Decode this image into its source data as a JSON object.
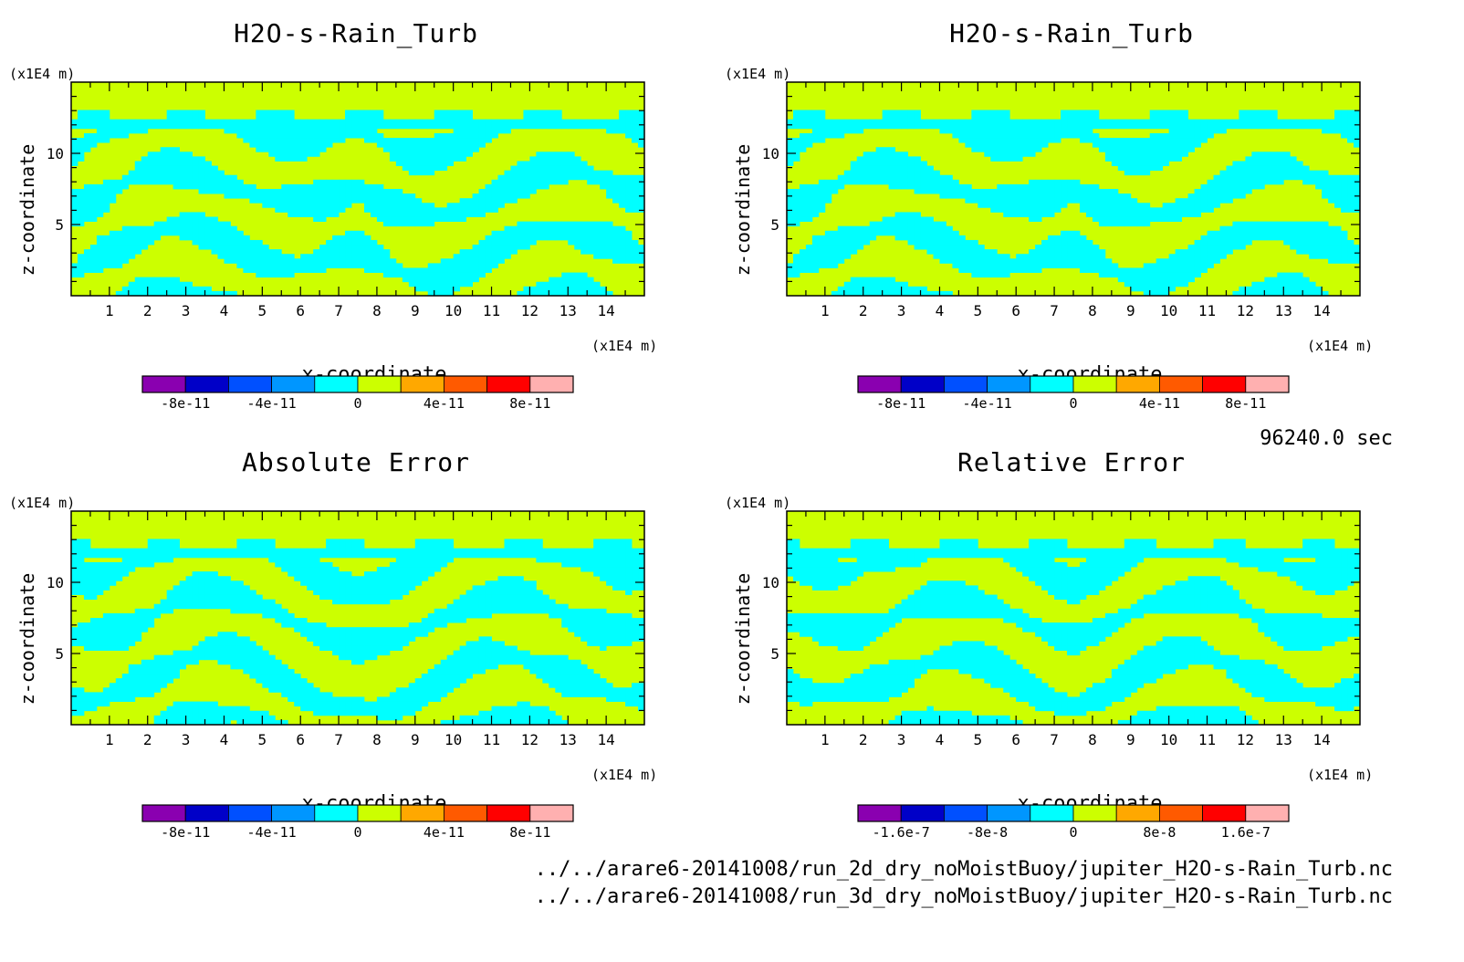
{
  "time_label": "96240.0 sec",
  "files": [
    "../../arare6-20141008/run_2d_dry_noMoistBuoy/jupiter_H2O-s-Rain_Turb.nc",
    "../../arare6-20141008/run_3d_dry_noMoistBuoy/jupiter_H2O-s-Rain_Turb.nc"
  ],
  "colors": {
    "field_low": "#00ffff",
    "field_high": "#ccff00",
    "colorbar": [
      "#8a00b0",
      "#0000c8",
      "#0050ff",
      "#0096ff",
      "#00ffff",
      "#ccff00",
      "#ffa800",
      "#ff5a00",
      "#ff0000",
      "#ffb0b0"
    ]
  },
  "chart_data": [
    {
      "type": "heatmap",
      "title": "H2O-s-Rain_Turb",
      "xlabel": "x-coordinate",
      "ylabel": "z-coordinate",
      "xunits": "(x1E4 m)",
      "yunits": "(x1E4 m)",
      "xlim": [
        0,
        15
      ],
      "ylim": [
        0,
        15
      ],
      "xticks": [
        "1",
        "2",
        "3",
        "4",
        "5",
        "6",
        "7",
        "8",
        "9",
        "10",
        "11",
        "12",
        "13",
        "14"
      ],
      "yticks": [
        "5",
        "10"
      ],
      "colorbar_labels": [
        "-8e-11",
        "-4e-11",
        "0",
        "4e-11",
        "8e-11"
      ],
      "levels": [
        -1e-10,
        -8e-11,
        -6e-11,
        -4e-11,
        -2e-11,
        0,
        2e-11,
        4e-11,
        6e-11,
        8e-11,
        1e-10
      ]
    },
    {
      "type": "heatmap",
      "title": "H2O-s-Rain_Turb",
      "xlabel": "x-coordinate",
      "ylabel": "z-coordinate",
      "xunits": "(x1E4 m)",
      "yunits": "(x1E4 m)",
      "xlim": [
        0,
        15
      ],
      "ylim": [
        0,
        15
      ],
      "xticks": [
        "1",
        "2",
        "3",
        "4",
        "5",
        "6",
        "7",
        "8",
        "9",
        "10",
        "11",
        "12",
        "13",
        "14"
      ],
      "yticks": [
        "5",
        "10"
      ],
      "colorbar_labels": [
        "-8e-11",
        "-4e-11",
        "0",
        "4e-11",
        "8e-11"
      ],
      "levels": [
        -1e-10,
        -8e-11,
        -6e-11,
        -4e-11,
        -2e-11,
        0,
        2e-11,
        4e-11,
        6e-11,
        8e-11,
        1e-10
      ]
    },
    {
      "type": "heatmap",
      "title": "Absolute Error",
      "xlabel": "x-coordinate",
      "ylabel": "z-coordinate",
      "xunits": "(x1E4 m)",
      "yunits": "(x1E4 m)",
      "xlim": [
        0,
        15
      ],
      "ylim": [
        0,
        15
      ],
      "xticks": [
        "1",
        "2",
        "3",
        "4",
        "5",
        "6",
        "7",
        "8",
        "9",
        "10",
        "11",
        "12",
        "13",
        "14"
      ],
      "yticks": [
        "5",
        "10"
      ],
      "colorbar_labels": [
        "-8e-11",
        "-4e-11",
        "0",
        "4e-11",
        "8e-11"
      ],
      "levels": [
        -1e-10,
        -8e-11,
        -6e-11,
        -4e-11,
        -2e-11,
        0,
        2e-11,
        4e-11,
        6e-11,
        8e-11,
        1e-10
      ]
    },
    {
      "type": "heatmap",
      "title": "Relative Error",
      "xlabel": "x-coordinate",
      "ylabel": "z-coordinate",
      "xunits": "(x1E4 m)",
      "yunits": "(x1E4 m)",
      "xlim": [
        0,
        15
      ],
      "ylim": [
        0,
        15
      ],
      "xticks": [
        "1",
        "2",
        "3",
        "4",
        "5",
        "6",
        "7",
        "8",
        "9",
        "10",
        "11",
        "12",
        "13",
        "14"
      ],
      "yticks": [
        "5",
        "10"
      ],
      "colorbar_labels": [
        "-1.6e-7",
        "-8e-8",
        "0",
        "8e-8",
        "1.6e-7"
      ],
      "levels": [
        -2e-07,
        -1.6e-07,
        -1.2e-07,
        -8e-08,
        -4e-08,
        0,
        4e-08,
        8e-08,
        1.2e-07,
        1.6e-07,
        2e-07
      ]
    }
  ]
}
